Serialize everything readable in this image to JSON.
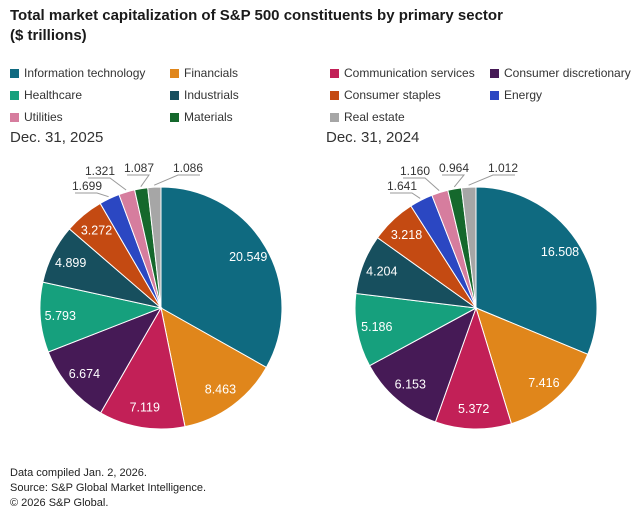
{
  "title": "Total market capitalization of S&P 500 constituents by primary sector\n($ trillions)",
  "legend": {
    "items": [
      {
        "label": "Information technology",
        "color": "#0f6a80"
      },
      {
        "label": "Financials",
        "color": "#e0861b"
      },
      {
        "label": "Communication services",
        "color": "#c22057"
      },
      {
        "label": "Consumer discretionary",
        "color": "#461a56"
      },
      {
        "label": "Healthcare",
        "color": "#16a07d"
      },
      {
        "label": "Industrials",
        "color": "#174f5e"
      },
      {
        "label": "Consumer staples",
        "color": "#c44a12"
      },
      {
        "label": "Energy",
        "color": "#2b47c2"
      },
      {
        "label": "Utilities",
        "color": "#d67d9e"
      },
      {
        "label": "Materials",
        "color": "#15682c"
      },
      {
        "label": "Real estate",
        "color": "#a6a6a6"
      }
    ]
  },
  "chart_data": [
    {
      "type": "pie",
      "title": "Dec. 31, 2025",
      "units": "$ trillions",
      "value_format": "3_decimals",
      "slices": [
        {
          "label": "Information technology",
          "value": 20.549,
          "color": "#0f6a80"
        },
        {
          "label": "Financials",
          "value": 8.463,
          "color": "#e0861b"
        },
        {
          "label": "Communication services",
          "value": 7.119,
          "color": "#c22057"
        },
        {
          "label": "Consumer discretionary",
          "value": 6.674,
          "color": "#461a56"
        },
        {
          "label": "Healthcare",
          "value": 5.793,
          "color": "#16a07d"
        },
        {
          "label": "Industrials",
          "value": 4.899,
          "color": "#174f5e"
        },
        {
          "label": "Consumer staples",
          "value": 3.272,
          "color": "#c44a12"
        },
        {
          "label": "Energy",
          "value": 1.699,
          "color": "#2b47c2"
        },
        {
          "label": "Utilities",
          "value": 1.321,
          "color": "#d67d9e"
        },
        {
          "label": "Materials",
          "value": 1.087,
          "color": "#15682c"
        },
        {
          "label": "Real estate",
          "value": 1.086,
          "color": "#a6a6a6"
        }
      ]
    },
    {
      "type": "pie",
      "title": "Dec. 31, 2024",
      "units": "$ trillions",
      "value_format": "3_decimals",
      "slices": [
        {
          "label": "Information technology",
          "value": 16.508,
          "color": "#0f6a80"
        },
        {
          "label": "Financials",
          "value": 7.416,
          "color": "#e0861b"
        },
        {
          "label": "Communication services",
          "value": 5.372,
          "color": "#c22057"
        },
        {
          "label": "Consumer discretionary",
          "value": 6.153,
          "color": "#461a56"
        },
        {
          "label": "Healthcare",
          "value": 5.186,
          "color": "#16a07d"
        },
        {
          "label": "Industrials",
          "value": 4.204,
          "color": "#174f5e"
        },
        {
          "label": "Consumer staples",
          "value": 3.218,
          "color": "#c44a12"
        },
        {
          "label": "Energy",
          "value": 1.641,
          "color": "#2b47c2"
        },
        {
          "label": "Utilities",
          "value": 1.16,
          "color": "#d67d9e"
        },
        {
          "label": "Materials",
          "value": 0.964,
          "color": "#15682c"
        },
        {
          "label": "Real estate",
          "value": 1.012,
          "color": "#a6a6a6"
        }
      ]
    }
  ],
  "footer": {
    "lines": [
      "Data compiled Jan. 2, 2026.",
      "Source: S&P Global Market Intelligence.",
      "© 2026 S&P Global."
    ]
  }
}
